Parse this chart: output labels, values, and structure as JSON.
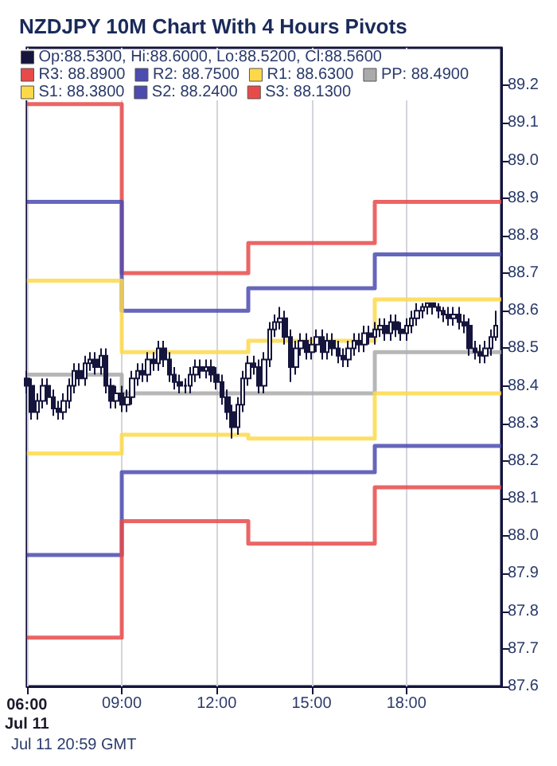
{
  "chart_data": {
    "type": "candlestick",
    "title": "NZDJPY 10M Chart With 4 Hours Pivots",
    "annotations": [
      "Jul 11 20:59 GMT"
    ],
    "xlim": [
      6,
      21
    ],
    "xticks": [
      {
        "value": 6,
        "label": "06:00\nJul 11"
      },
      {
        "value": 9,
        "label": "09:00"
      },
      {
        "value": 12,
        "label": "12:00"
      },
      {
        "value": 15,
        "label": "15:00"
      },
      {
        "value": 18,
        "label": "18:00"
      }
    ],
    "ylim": [
      87.6,
      89.3
    ],
    "yticks": [
      87.6,
      87.7,
      87.8,
      87.9,
      {
        "value": 88,
        "label": "88.0"
      },
      88.1,
      88.2,
      88.3,
      88.4,
      88.5,
      88.6,
      88.7,
      88.8,
      88.9,
      {
        "value": 89,
        "label": "89.0"
      },
      89.1,
      89.2
    ],
    "grid": "x",
    "legend": "top",
    "marker": "none",
    "series": [
      {
        "type": "candlestick",
        "name": "Op:88.5300, Hi:88.6000, Lo:88.5200, Cl:88.5600",
        "color": "#14143c",
        "x": [
          6,
          6.1667,
          6.3333,
          6.5,
          6.6667,
          6.8333,
          7,
          7.1667,
          7.3333,
          7.5,
          7.6667,
          7.8333,
          8,
          8.1667,
          8.3333,
          8.5,
          8.6667,
          8.8333,
          9,
          9.1667,
          9.3333,
          9.5,
          9.6667,
          9.8333,
          10,
          10.1667,
          10.3333,
          10.5,
          10.6667,
          10.8333,
          11,
          11.1667,
          11.3333,
          11.5,
          11.6667,
          11.8333,
          12,
          12.1667,
          12.3333,
          12.5,
          12.6667,
          12.8333,
          13,
          13.1667,
          13.3333,
          13.5,
          13.6667,
          13.8333,
          14,
          14.1667,
          14.3333,
          14.5,
          14.6667,
          14.8333,
          15,
          15.1667,
          15.3333,
          15.5,
          15.6667,
          15.8333,
          16,
          16.1667,
          16.3333,
          16.5,
          16.6667,
          16.8333,
          17,
          17.1667,
          17.3333,
          17.5,
          17.6667,
          17.8333,
          18,
          18.1667,
          18.3333,
          18.5,
          18.6667,
          18.8333,
          19,
          19.1667,
          19.3333,
          19.5,
          19.6667,
          19.8333,
          20,
          20.1667,
          20.3333,
          20.5,
          20.6667,
          20.8333
        ],
        "ohlc": [
          [
            88.42,
            88.44,
            88.38,
            88.4
          ],
          [
            88.4,
            88.42,
            88.31,
            88.33
          ],
          [
            88.33,
            88.38,
            88.31,
            88.36
          ],
          [
            88.36,
            88.42,
            88.34,
            88.4
          ],
          [
            88.4,
            88.42,
            88.35,
            88.37
          ],
          [
            88.37,
            88.39,
            88.32,
            88.34
          ],
          [
            88.34,
            88.36,
            88.31,
            88.33
          ],
          [
            88.33,
            88.38,
            88.31,
            88.36
          ],
          [
            88.36,
            88.42,
            88.34,
            88.4
          ],
          [
            88.4,
            88.46,
            88.38,
            88.44
          ],
          [
            88.44,
            88.46,
            88.4,
            88.42
          ],
          [
            88.42,
            88.48,
            88.4,
            88.46
          ],
          [
            88.46,
            88.49,
            88.44,
            88.47
          ],
          [
            88.47,
            88.49,
            88.43,
            88.45
          ],
          [
            88.45,
            88.5,
            88.43,
            88.48
          ],
          [
            88.48,
            88.5,
            88.38,
            88.4
          ],
          [
            88.4,
            88.42,
            88.34,
            88.36
          ],
          [
            88.36,
            88.4,
            88.34,
            88.38
          ],
          [
            88.38,
            88.4,
            88.33,
            88.35
          ],
          [
            88.35,
            88.39,
            88.33,
            88.37
          ],
          [
            88.37,
            88.44,
            88.35,
            88.42
          ],
          [
            88.42,
            88.46,
            88.4,
            88.44
          ],
          [
            88.44,
            88.46,
            88.41,
            88.43
          ],
          [
            88.43,
            88.49,
            88.41,
            88.47
          ],
          [
            88.47,
            88.49,
            88.44,
            88.46
          ],
          [
            88.46,
            88.52,
            88.44,
            88.5
          ],
          [
            88.5,
            88.52,
            88.45,
            88.47
          ],
          [
            88.47,
            88.49,
            88.41,
            88.43
          ],
          [
            88.43,
            88.45,
            88.39,
            88.41
          ],
          [
            88.41,
            88.43,
            88.38,
            88.4
          ],
          [
            88.4,
            88.42,
            88.38,
            88.4
          ],
          [
            88.4,
            88.45,
            88.38,
            88.43
          ],
          [
            88.43,
            88.47,
            88.41,
            88.45
          ],
          [
            88.45,
            88.47,
            88.42,
            88.44
          ],
          [
            88.44,
            88.47,
            88.42,
            88.45
          ],
          [
            88.45,
            88.47,
            88.41,
            88.43
          ],
          [
            88.43,
            88.45,
            88.39,
            88.41
          ],
          [
            88.41,
            88.43,
            88.35,
            88.37
          ],
          [
            88.37,
            88.39,
            88.31,
            88.33
          ],
          [
            88.33,
            88.35,
            88.26,
            88.29
          ],
          [
            88.29,
            88.37,
            88.27,
            88.35
          ],
          [
            88.35,
            88.44,
            88.33,
            88.42
          ],
          [
            88.42,
            88.48,
            88.4,
            88.46
          ],
          [
            88.46,
            88.48,
            88.43,
            88.45
          ],
          [
            88.45,
            88.47,
            88.38,
            88.4
          ],
          [
            88.4,
            88.49,
            88.38,
            88.47
          ],
          [
            88.47,
            88.57,
            88.45,
            88.55
          ],
          [
            88.55,
            88.59,
            88.53,
            88.57
          ],
          [
            88.57,
            88.61,
            88.55,
            88.58
          ],
          [
            88.58,
            88.6,
            88.51,
            88.53
          ],
          [
            88.53,
            88.55,
            88.41,
            88.45
          ],
          [
            88.45,
            88.52,
            88.43,
            88.5
          ],
          [
            88.5,
            88.54,
            88.48,
            88.52
          ],
          [
            88.52,
            88.54,
            88.47,
            88.49
          ],
          [
            88.49,
            88.53,
            88.47,
            88.51
          ],
          [
            88.51,
            88.55,
            88.49,
            88.53
          ],
          [
            88.53,
            88.55,
            88.47,
            88.49
          ],
          [
            88.49,
            88.54,
            88.47,
            88.52
          ],
          [
            88.52,
            88.54,
            88.48,
            88.5
          ],
          [
            88.5,
            88.52,
            88.46,
            88.48
          ],
          [
            88.48,
            88.5,
            88.45,
            88.47
          ],
          [
            88.47,
            88.52,
            88.45,
            88.5
          ],
          [
            88.5,
            88.54,
            88.48,
            88.52
          ],
          [
            88.52,
            88.54,
            88.49,
            88.51
          ],
          [
            88.51,
            88.56,
            88.49,
            88.54
          ],
          [
            88.54,
            88.56,
            88.51,
            88.53
          ],
          [
            88.53,
            88.57,
            88.51,
            88.55
          ],
          [
            88.55,
            88.58,
            88.53,
            88.56
          ],
          [
            88.56,
            88.58,
            88.52,
            88.54
          ],
          [
            88.54,
            88.59,
            88.52,
            88.57
          ],
          [
            88.57,
            88.59,
            88.53,
            88.55
          ],
          [
            88.55,
            88.57,
            88.52,
            88.54
          ],
          [
            88.54,
            88.58,
            88.52,
            88.56
          ],
          [
            88.56,
            88.6,
            88.54,
            88.58
          ],
          [
            88.58,
            88.62,
            88.56,
            88.6
          ],
          [
            88.6,
            88.62,
            88.58,
            88.61
          ],
          [
            88.61,
            88.62,
            88.59,
            88.62
          ],
          [
            88.62,
            88.62,
            88.59,
            88.61
          ],
          [
            88.61,
            88.62,
            88.58,
            88.6
          ],
          [
            88.6,
            88.61,
            88.57,
            88.59
          ],
          [
            88.59,
            88.61,
            88.56,
            88.58
          ],
          [
            88.58,
            88.61,
            88.56,
            88.59
          ],
          [
            88.59,
            88.61,
            88.55,
            88.57
          ],
          [
            88.57,
            88.59,
            88.54,
            88.56
          ],
          [
            88.56,
            88.58,
            88.48,
            88.5
          ],
          [
            88.5,
            88.52,
            88.47,
            88.49
          ],
          [
            88.49,
            88.51,
            88.46,
            88.48
          ],
          [
            88.48,
            88.52,
            88.46,
            88.5
          ],
          [
            88.5,
            88.55,
            88.48,
            88.53
          ],
          [
            88.53,
            88.6,
            88.52,
            88.56
          ]
        ]
      },
      {
        "type": "step",
        "name": "R3: 88.8900",
        "color": "#e84a4a",
        "x": [
          6,
          9,
          13,
          17,
          21
        ],
        "values": [
          89.15,
          88.7,
          88.78,
          88.89,
          88.89
        ]
      },
      {
        "type": "step",
        "name": "R2: 88.7500",
        "color": "#4b4bb0",
        "x": [
          6,
          9,
          13,
          17,
          21
        ],
        "values": [
          88.89,
          88.6,
          88.66,
          88.75,
          88.75
        ]
      },
      {
        "type": "step",
        "name": "R1: 88.6300",
        "color": "#fdd94a",
        "x": [
          6,
          9,
          13,
          17,
          21
        ],
        "values": [
          88.68,
          88.49,
          88.52,
          88.63,
          88.63
        ]
      },
      {
        "type": "step",
        "name": "PP: 88.4900",
        "color": "#aaaaaa",
        "x": [
          6,
          9,
          13,
          17,
          21
        ],
        "values": [
          88.43,
          88.38,
          88.38,
          88.49,
          88.49
        ]
      },
      {
        "type": "step",
        "name": "S1: 88.3800",
        "color": "#fdd94a",
        "x": [
          6,
          9,
          13,
          17,
          21
        ],
        "values": [
          88.22,
          88.27,
          88.26,
          88.38,
          88.38
        ]
      },
      {
        "type": "step",
        "name": "S2: 88.2400",
        "color": "#4b4bb0",
        "x": [
          6,
          9,
          13,
          17,
          21
        ],
        "values": [
          87.95,
          88.17,
          88.17,
          88.24,
          88.24
        ]
      },
      {
        "type": "step",
        "name": "S3: 88.1300",
        "color": "#e84a4a",
        "x": [
          6,
          9,
          13,
          17,
          21
        ],
        "values": [
          87.73,
          88.04,
          87.98,
          88.13,
          88.13
        ]
      }
    ]
  }
}
